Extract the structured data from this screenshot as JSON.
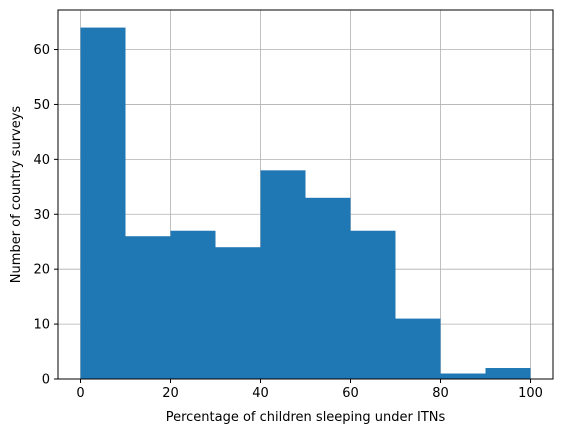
{
  "chart_data": {
    "type": "bar",
    "bin_edges": [
      0,
      10,
      20,
      30,
      40,
      50,
      60,
      70,
      80,
      90,
      100
    ],
    "values": [
      64,
      26,
      27,
      24,
      38,
      33,
      27,
      11,
      1,
      2
    ],
    "xlabel": "Percentage of children sleeping under ITNs",
    "ylabel": "Number of country surveys",
    "xlim": [
      -5,
      105
    ],
    "ylim": [
      0,
      67.2
    ],
    "xticks": [
      0,
      20,
      40,
      60,
      80,
      100
    ],
    "yticks": [
      0,
      10,
      20,
      30,
      40,
      50,
      60
    ],
    "grid": true,
    "bar_color": "#1f77b4",
    "grid_color": "#b0b0b0"
  }
}
